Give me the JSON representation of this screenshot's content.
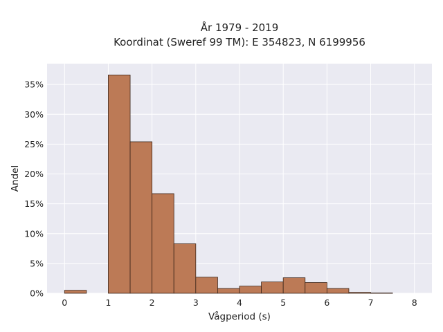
{
  "chart_data": {
    "type": "bar",
    "title_line1": "År 1979 - 2019",
    "title_line2": "Koordinat (Sweref 99 TM): E 354823, N 6199956",
    "xlabel": "Vågperiod (s)",
    "ylabel": "Andel",
    "xlim": [
      -0.4,
      8.4
    ],
    "ylim": [
      0,
      0.385
    ],
    "x_ticks": [
      0,
      1,
      2,
      3,
      4,
      5,
      6,
      7,
      8
    ],
    "y_ticks": [
      0,
      0.05,
      0.1,
      0.15,
      0.2,
      0.25,
      0.3,
      0.35
    ],
    "y_tick_labels": [
      "0%",
      "5%",
      "10%",
      "15%",
      "20%",
      "25%",
      "30%",
      "35%"
    ],
    "grid": true,
    "bin_width": 0.5,
    "bins": [
      {
        "start": 0.0,
        "value": 0.005
      },
      {
        "start": 0.5,
        "value": 0.0
      },
      {
        "start": 1.0,
        "value": 0.366
      },
      {
        "start": 1.5,
        "value": 0.254
      },
      {
        "start": 2.0,
        "value": 0.167
      },
      {
        "start": 2.5,
        "value": 0.083
      },
      {
        "start": 3.0,
        "value": 0.027
      },
      {
        "start": 3.5,
        "value": 0.008
      },
      {
        "start": 4.0,
        "value": 0.012
      },
      {
        "start": 4.5,
        "value": 0.019
      },
      {
        "start": 5.0,
        "value": 0.026
      },
      {
        "start": 5.5,
        "value": 0.018
      },
      {
        "start": 6.0,
        "value": 0.008
      },
      {
        "start": 6.5,
        "value": 0.0015
      },
      {
        "start": 7.0,
        "value": 0.0005
      }
    ],
    "colors": {
      "bar_fill": "#bc7a56",
      "bar_edge": "#3a2418",
      "plot_background": "#eaeaf2",
      "grid": "#ffffff"
    }
  }
}
